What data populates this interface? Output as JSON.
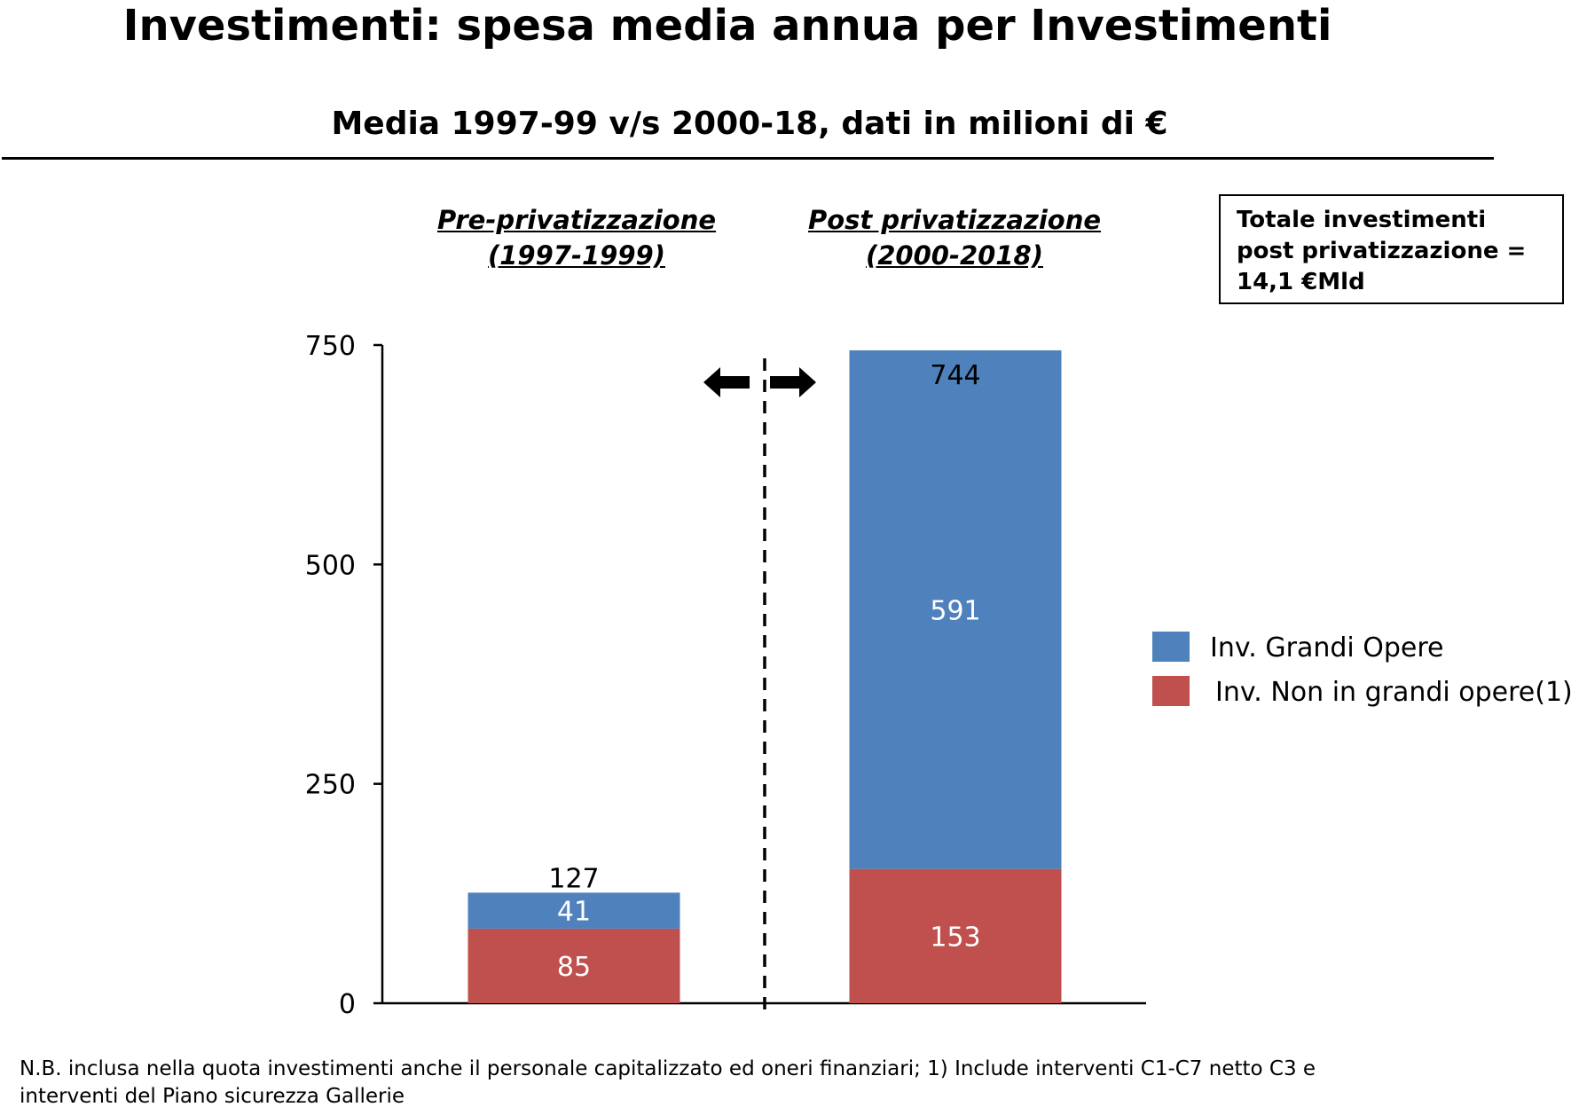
{
  "page": {
    "title": "Investimenti: spesa media annua per Investimenti",
    "subtitle": "Media 1997-99 v/s 2000-18, dati in milioni di €",
    "period_pre": [
      "Pre-privatizzazione ",
      "(1997-1999)"
    ],
    "period_post": [
      "Post privatizzazione",
      "(2000-2018)"
    ],
    "total_box": [
      "Totale investimenti",
      "post privatizzazione =",
      "14,1 €Mld"
    ],
    "footnote": [
      "N.B. inclusa nella quota investimenti anche il personale capitalizzato ed oneri finanziari; 1) Include interventi C1-C7 netto C3 e",
      "interventi del Piano sicurezza Gallerie"
    ]
  },
  "chart_data": {
    "type": "bar",
    "stacked": true,
    "categories": [
      "Pre-privatizzazione (1997-1999)",
      "Post privatizzazione (2000-2018)"
    ],
    "series": [
      {
        "name": "Inv. Non in grandi opere(1)",
        "values": [
          85,
          153
        ],
        "labels": [
          "85",
          "153"
        ],
        "color": "#c0504d"
      },
      {
        "name": "Inv. Grandi Opere",
        "values": [
          41,
          591
        ],
        "labels": [
          "41",
          "591"
        ],
        "color": "#4f81bd"
      }
    ],
    "totals": [
      127,
      744
    ],
    "total_labels": [
      "127",
      "744"
    ],
    "yticks": [
      0,
      250,
      500,
      750
    ],
    "ytick_labels": [
      "0",
      "250",
      "500",
      "750"
    ],
    "ylim": [
      0,
      750
    ],
    "grid": false,
    "legend": "right",
    "divider": "dashed vertical line between the two periods with arrows pointing left and right"
  }
}
